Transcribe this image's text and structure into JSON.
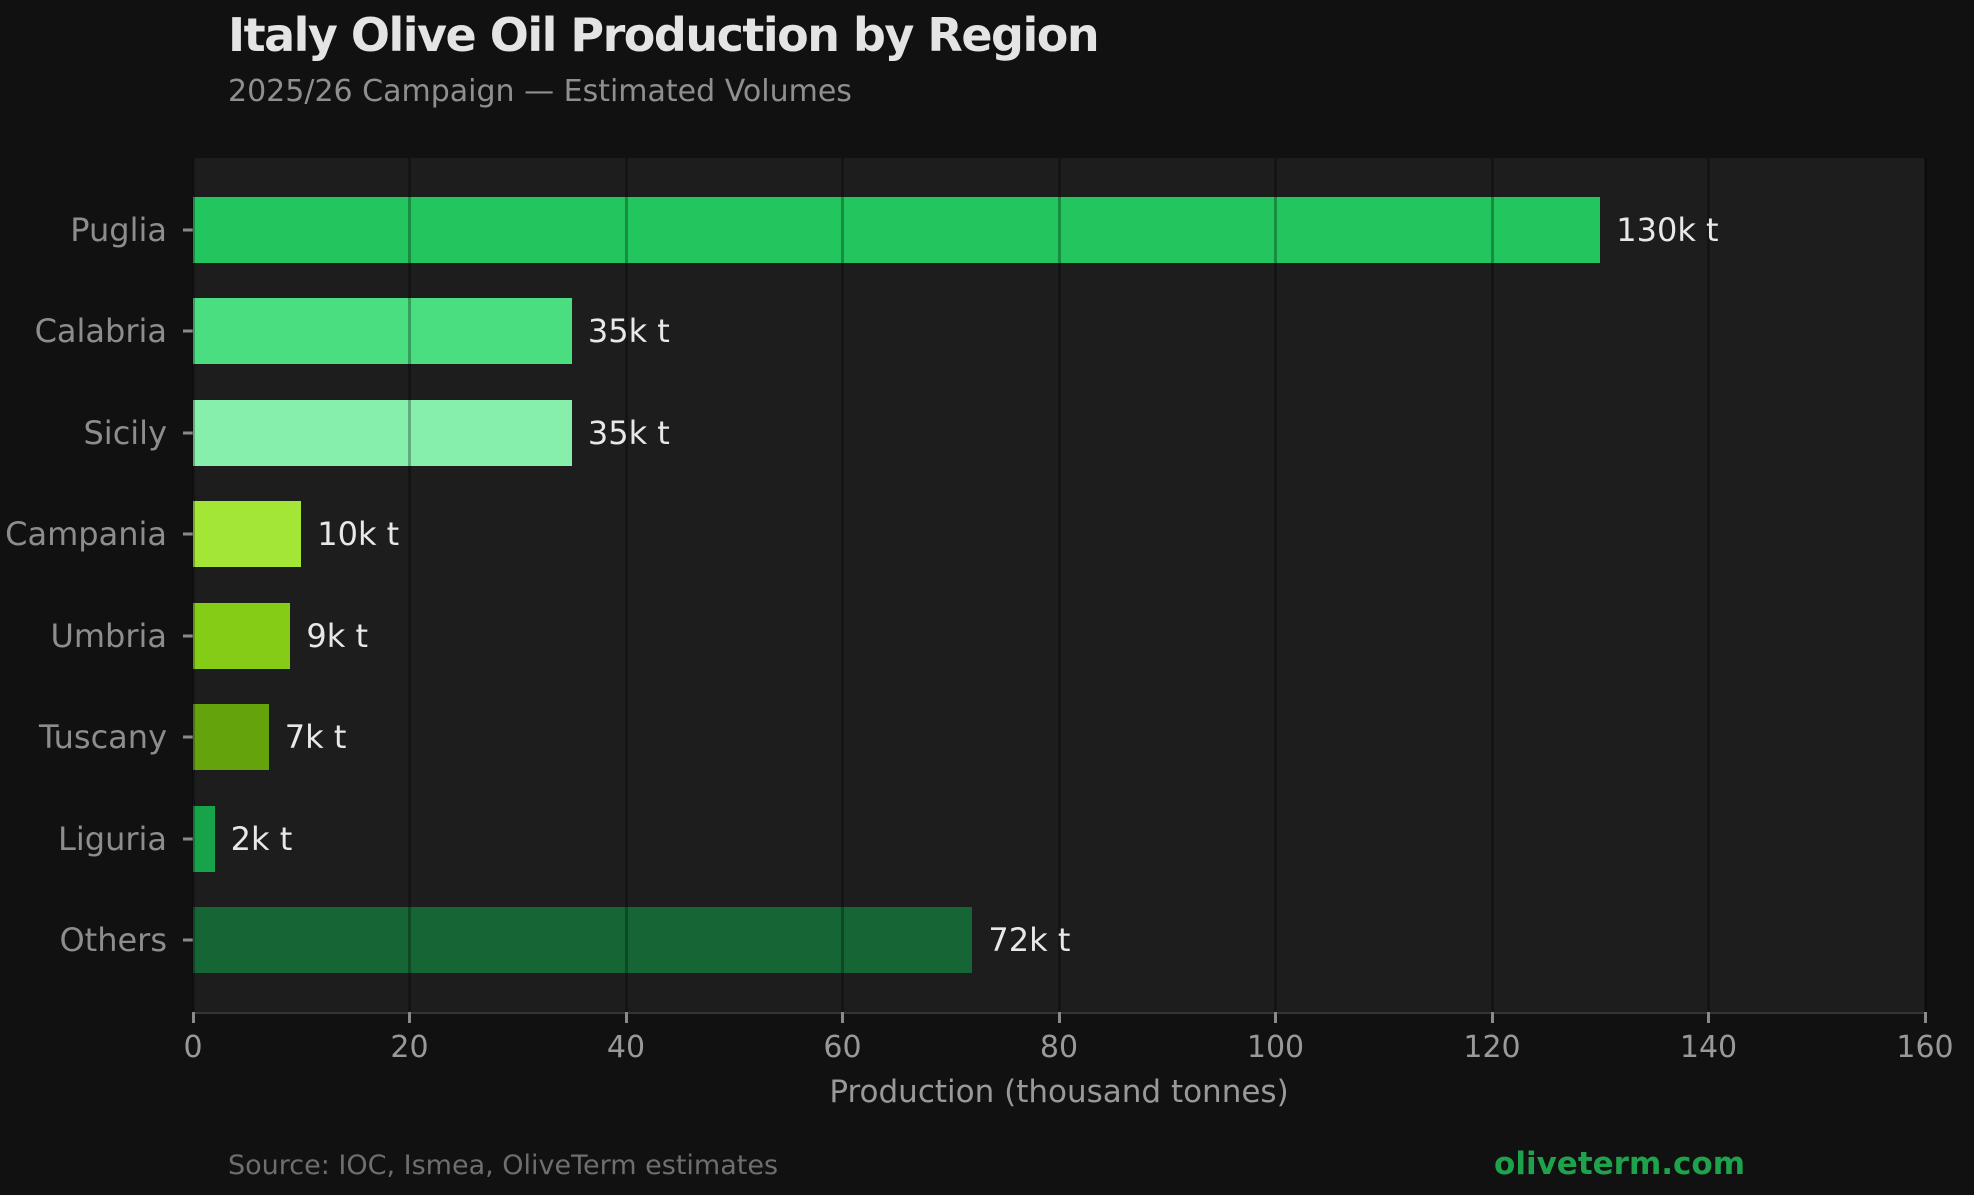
{
  "header": {
    "title": "Italy Olive Oil Production by Region",
    "subtitle": "2025/26 Campaign — Estimated Volumes"
  },
  "footer": {
    "source": "Source: IOC, Ismea, OliveTerm estimates",
    "brand": "oliveterm.com",
    "brand_color": "#1fa24c"
  },
  "colors": {
    "background": "#111112",
    "plot_background": "#1d1d1d",
    "title_text": "#e4e4e4",
    "muted_text": "#8f8f8f",
    "value_label_text": "#e8e8e8"
  },
  "chart_data": {
    "type": "bar",
    "orientation": "horizontal",
    "title": "Italy Olive Oil Production by Region",
    "subtitle": "2025/26 Campaign — Estimated Volumes",
    "categories": [
      "Puglia",
      "Calabria",
      "Sicily",
      "Campania",
      "Umbria",
      "Tuscany",
      "Liguria",
      "Others"
    ],
    "values": [
      130,
      35,
      35,
      10,
      9,
      7,
      2,
      72
    ],
    "value_labels": [
      "130k t",
      "35k t",
      "35k t",
      "10k t",
      "9k t",
      "7k t",
      "2k t",
      "72k t"
    ],
    "bar_colors": [
      "#22c55e",
      "#4ade80",
      "#86efac",
      "#a3e635",
      "#84cc16",
      "#65a30d",
      "#16a34a",
      "#166534"
    ],
    "xlabel": "Production (thousand tonnes)",
    "ylabel": "",
    "xlim": [
      0,
      160
    ],
    "xticks": [
      0,
      20,
      40,
      60,
      80,
      100,
      120,
      140,
      160
    ],
    "grid": true,
    "grid_axis": "x",
    "legend": false
  }
}
